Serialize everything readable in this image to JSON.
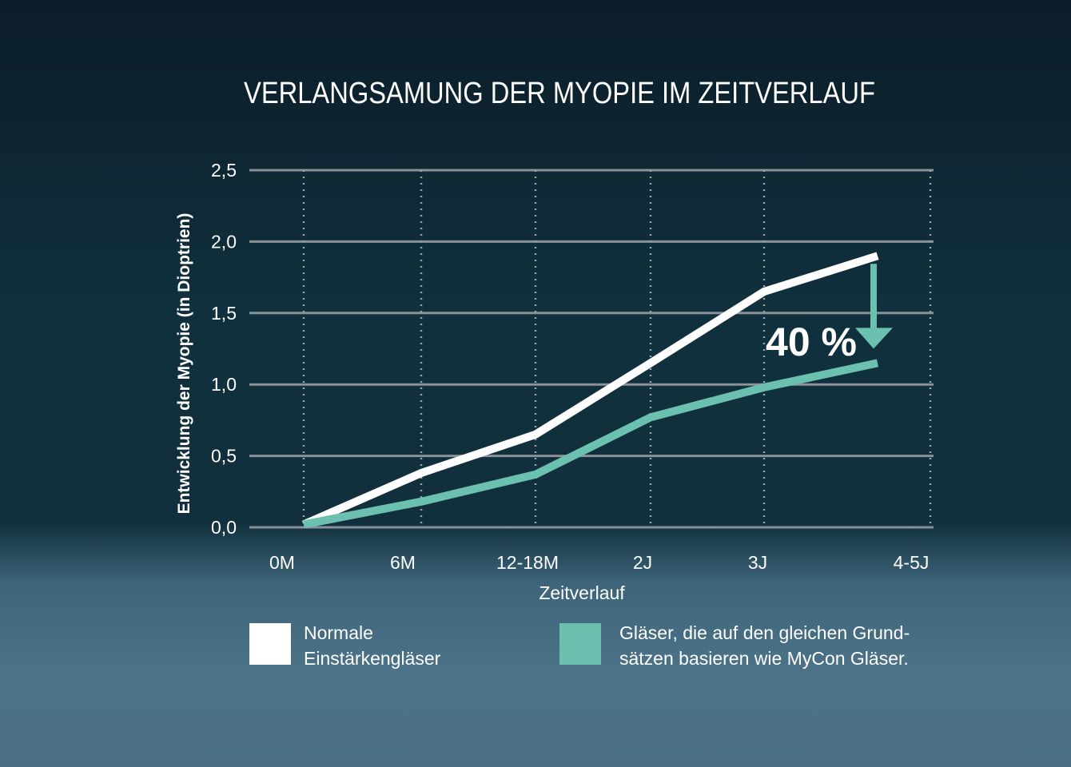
{
  "chart_data": {
    "type": "line",
    "title": "VERLANGSAMUNG DER MYOPIE IM ZEITVERLAUF",
    "xlabel": "Zeitverlauf",
    "ylabel": "Entwicklung der Myopie (in Dioptrien)",
    "categories": [
      "0M",
      "6M",
      "12-18M",
      "2J",
      "3J",
      "4-5J"
    ],
    "ylim": [
      0,
      2.5
    ],
    "yticks": [
      "0,0",
      "0,5",
      "1,0",
      "1,5",
      "2,0",
      "2,5"
    ],
    "grid": true,
    "series": [
      {
        "name": "Normale Einstärkengläser",
        "color": "#ffffff",
        "points": [
          [
            0,
            0.02
          ],
          [
            1,
            0.38
          ],
          [
            2,
            0.65
          ],
          [
            3,
            1.15
          ],
          [
            4,
            1.65
          ],
          [
            5,
            1.9
          ]
        ]
      },
      {
        "name": "Gläser, die auf den gleichen Grundsätzen basieren wie MyCon Gläser.",
        "color": "#6cc0b0",
        "points": [
          [
            0,
            0.02
          ],
          [
            1,
            0.18
          ],
          [
            2,
            0.37
          ],
          [
            3,
            0.77
          ],
          [
            4,
            0.98
          ],
          [
            5,
            1.15
          ]
        ]
      }
    ],
    "annotation": {
      "text": "40 %",
      "color": "#6cc0b0"
    }
  },
  "legend": {
    "item1_line1": "Normale",
    "item1_line2": "Einstärkengläser",
    "item2_line1": "Gläser, die auf den gleichen Grund-",
    "item2_line2": "sätzen basieren wie MyCon Gläser."
  }
}
